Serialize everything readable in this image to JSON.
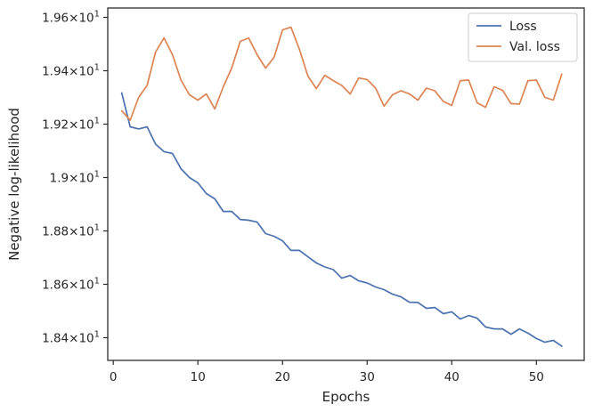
{
  "chart_data": {
    "type": "line",
    "xlabel": "Epochs",
    "ylabel": "Negative log-likelihood",
    "xlim": [
      -0.65,
      55.65
    ],
    "ylim": [
      18.315,
      19.635
    ],
    "x_ticks": [
      {
        "value": 0,
        "label": "0"
      },
      {
        "value": 10,
        "label": "10"
      },
      {
        "value": 20,
        "label": "20"
      },
      {
        "value": 30,
        "label": "30"
      },
      {
        "value": 40,
        "label": "40"
      },
      {
        "value": 50,
        "label": "50"
      }
    ],
    "y_ticks": [
      {
        "value": 18.4,
        "mant": "1.84",
        "exp": "1"
      },
      {
        "value": 18.6,
        "mant": "1.86",
        "exp": "1"
      },
      {
        "value": 18.8,
        "mant": "1.88",
        "exp": "1"
      },
      {
        "value": 19.0,
        "mant": "1.9",
        "exp": "1"
      },
      {
        "value": 19.2,
        "mant": "1.92",
        "exp": "1"
      },
      {
        "value": 19.4,
        "mant": "1.94",
        "exp": "1"
      },
      {
        "value": 19.6,
        "mant": "1.96",
        "exp": "1"
      }
    ],
    "y_tick_base": "10",
    "y_tick_times": "×",
    "legend_position": "top-right",
    "grid": false,
    "x": [
      1,
      2,
      3,
      4,
      5,
      6,
      7,
      8,
      9,
      10,
      11,
      12,
      13,
      14,
      15,
      16,
      17,
      18,
      19,
      20,
      21,
      22,
      23,
      24,
      25,
      26,
      27,
      28,
      29,
      30,
      31,
      32,
      33,
      34,
      35,
      36,
      37,
      38,
      39,
      40,
      41,
      42,
      43,
      44,
      45,
      46,
      47,
      48,
      49,
      50,
      51,
      52,
      53
    ],
    "series": [
      {
        "name": "Loss",
        "color": "#4c72b0",
        "values": [
          19.317,
          19.19,
          19.182,
          19.19,
          19.125,
          19.097,
          19.09,
          19.033,
          19.0,
          18.98,
          18.94,
          18.92,
          18.873,
          18.873,
          18.843,
          18.84,
          18.833,
          18.79,
          18.78,
          18.763,
          18.727,
          18.727,
          18.703,
          18.68,
          18.665,
          18.655,
          18.623,
          18.633,
          18.613,
          18.605,
          18.59,
          18.58,
          18.563,
          18.553,
          18.533,
          18.532,
          18.51,
          18.513,
          18.49,
          18.497,
          18.47,
          18.483,
          18.473,
          18.44,
          18.433,
          18.433,
          18.413,
          18.433,
          18.417,
          18.397,
          18.383,
          18.39,
          18.368
        ]
      },
      {
        "name": "Val. loss",
        "color": "#dd8452",
        "values": [
          19.25,
          19.215,
          19.3,
          19.345,
          19.47,
          19.523,
          19.46,
          19.365,
          19.31,
          19.29,
          19.313,
          19.257,
          19.34,
          19.41,
          19.51,
          19.523,
          19.46,
          19.41,
          19.45,
          19.553,
          19.563,
          19.48,
          19.38,
          19.333,
          19.383,
          19.363,
          19.345,
          19.313,
          19.373,
          19.367,
          19.335,
          19.267,
          19.31,
          19.325,
          19.313,
          19.29,
          19.335,
          19.325,
          19.285,
          19.27,
          19.363,
          19.365,
          19.28,
          19.263,
          19.34,
          19.327,
          19.277,
          19.275,
          19.363,
          19.365,
          19.3,
          19.29,
          19.387
        ]
      }
    ]
  }
}
